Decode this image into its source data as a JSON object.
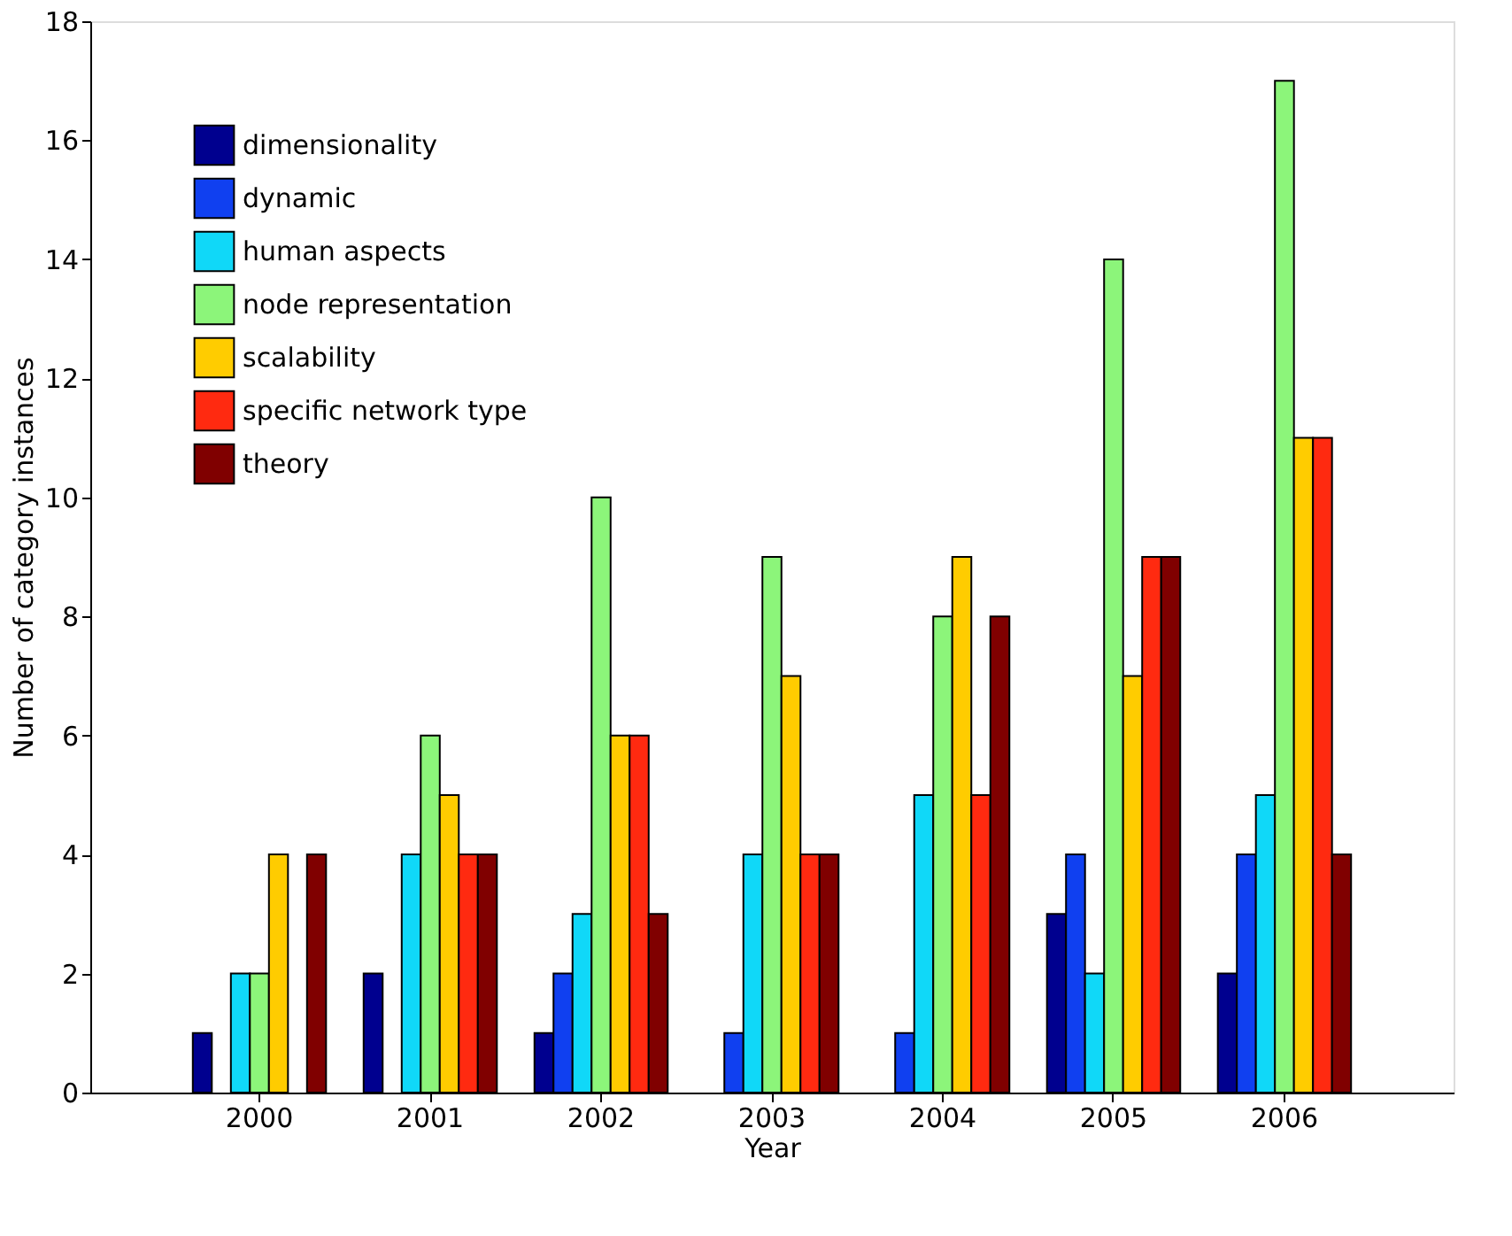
{
  "chart_data": {
    "type": "bar",
    "xlabel": "Year",
    "ylabel": "Number of category instances",
    "categories": [
      "2000",
      "2001",
      "2002",
      "2003",
      "2004",
      "2005",
      "2006"
    ],
    "series": [
      {
        "name": "dimensionality",
        "color": "#00008f",
        "values": [
          1,
          2,
          1,
          0,
          0,
          3,
          2
        ]
      },
      {
        "name": "dynamic",
        "color": "#1040f0",
        "values": [
          0,
          0,
          2,
          1,
          1,
          4,
          4
        ]
      },
      {
        "name": "human aspects",
        "color": "#10d8f8",
        "values": [
          2,
          4,
          3,
          4,
          5,
          2,
          5
        ]
      },
      {
        "name": "node representation",
        "color": "#8cf57a",
        "values": [
          2,
          6,
          10,
          9,
          8,
          14,
          17
        ]
      },
      {
        "name": "scalability",
        "color": "#ffcc00",
        "values": [
          4,
          5,
          6,
          7,
          9,
          7,
          11
        ]
      },
      {
        "name": "specific network type",
        "color": "#ff2a10",
        "values": [
          0,
          4,
          6,
          4,
          5,
          9,
          11
        ]
      },
      {
        "name": "theory",
        "color": "#800000",
        "values": [
          4,
          4,
          3,
          4,
          8,
          9,
          4
        ]
      }
    ],
    "ylim": [
      0,
      18
    ],
    "yticks": [
      0,
      2,
      4,
      6,
      8,
      10,
      12,
      14,
      16,
      18
    ],
    "grid": false,
    "legend": "top left"
  }
}
